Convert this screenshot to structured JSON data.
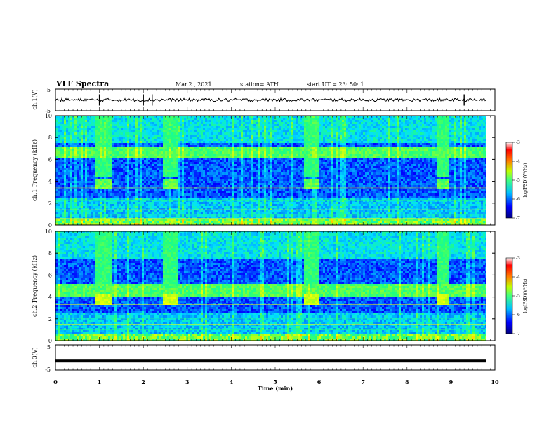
{
  "header": {
    "title": "VLF Spectra",
    "date": "Mar.2 , 2021",
    "station": "station= ATH",
    "start": "start UT = 23: 50: 1"
  },
  "chart_data": [
    {
      "type": "line",
      "panel": "ch1-waveform",
      "ylabel": "ch.1(V)",
      "ylim": [
        -5,
        5
      ],
      "yticks": [
        "5",
        "-5"
      ],
      "xlim": [
        0,
        10
      ],
      "mean_level": 0,
      "spikes_min": [
        1.0,
        2.0,
        2.2,
        9.3
      ]
    },
    {
      "type": "heatmap",
      "panel": "ch1-spectrogram",
      "ylabel": "ch.1 Frequency (kHz)",
      "ylim": [
        0,
        10
      ],
      "yticks": [
        "0",
        "2",
        "4",
        "6",
        "8",
        "10"
      ],
      "xlim": [
        0,
        10
      ],
      "bright_bands_min": [
        [
          0.9,
          1.25
        ],
        [
          2.4,
          2.75
        ],
        [
          5.65,
          5.95
        ],
        [
          8.65,
          8.95
        ]
      ],
      "hum_band_khz": [
        6.2,
        7.2
      ],
      "colorbar": {
        "label": "log(PSD)(V²/Hz)",
        "range": [
          -7,
          -3
        ],
        "ticks": [
          "-3",
          "-4",
          "-5",
          "-6",
          "-7"
        ]
      }
    },
    {
      "type": "heatmap",
      "panel": "ch2-spectrogram",
      "ylabel": "ch.2 Frequency (kHz)",
      "ylim": [
        0,
        10
      ],
      "yticks": [
        "0",
        "2",
        "4",
        "6",
        "8",
        "10"
      ],
      "xlim": [
        0,
        10
      ],
      "bright_bands_min": [
        [
          0.9,
          1.25
        ],
        [
          2.4,
          2.75
        ],
        [
          5.65,
          5.95
        ],
        [
          8.65,
          8.95
        ]
      ],
      "hum_band_khz": [
        4.2,
        5.2
      ],
      "colorbar": {
        "label": "log(PSD)(V²/Hz)",
        "range": [
          -7,
          -3
        ],
        "ticks": [
          "-3",
          "-4",
          "-5",
          "-6",
          "-7"
        ]
      }
    },
    {
      "type": "line",
      "panel": "ch3-waveform",
      "ylabel": "ch.3(V)",
      "ylim": [
        -5,
        5
      ],
      "yticks": [
        "5",
        "-5"
      ],
      "xlim": [
        0,
        10
      ],
      "mean_level": -1.3
    }
  ],
  "xaxis": {
    "label": "Time (min)",
    "ticks": [
      "0",
      "1",
      "2",
      "3",
      "4",
      "5",
      "6",
      "7",
      "8",
      "9",
      "10"
    ]
  },
  "colors": {
    "colormap": [
      "#00007f",
      "#0000ff",
      "#0080ff",
      "#00e0ff",
      "#20ff80",
      "#a0ff20",
      "#ffff00",
      "#ff8000",
      "#ff0000",
      "#ffffff"
    ]
  }
}
